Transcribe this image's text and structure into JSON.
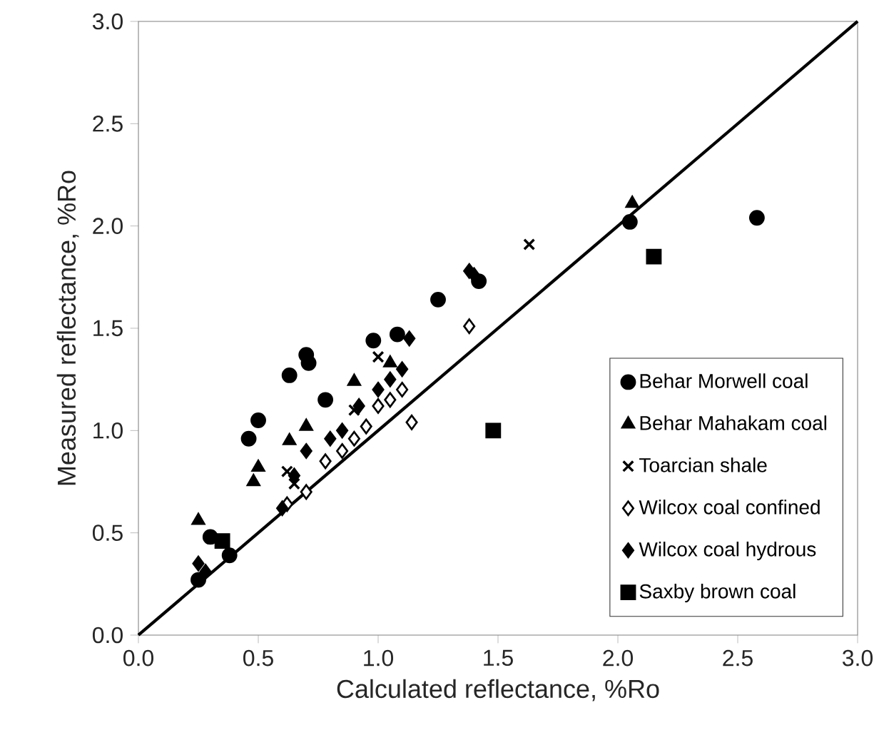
{
  "chart_data": {
    "type": "scatter",
    "xlabel": "Calculated reflectance, %Ro",
    "ylabel": "Measured reflectance, %Ro",
    "xlim": [
      0,
      3
    ],
    "ylim": [
      0,
      3
    ],
    "xticks": [
      {
        "value": 0,
        "label": "0.0"
      },
      {
        "value": 0.5,
        "label": "0.5"
      },
      {
        "value": 1,
        "label": "1.0"
      },
      {
        "value": 1.5,
        "label": "1.5"
      },
      {
        "value": 2,
        "label": "2.0"
      },
      {
        "value": 2.5,
        "label": "2.5"
      },
      {
        "value": 3,
        "label": "3.0"
      }
    ],
    "yticks": [
      {
        "value": 0,
        "label": "0.0"
      },
      {
        "value": 0.5,
        "label": "0.5"
      },
      {
        "value": 1,
        "label": "1.0"
      },
      {
        "value": 1.5,
        "label": "1.5"
      },
      {
        "value": 2,
        "label": "2.0"
      },
      {
        "value": 2.5,
        "label": "2.5"
      },
      {
        "value": 3,
        "label": "3.0"
      }
    ],
    "grid": false,
    "legend": "bottom right",
    "series": [
      {
        "name": "Behar Morwell coal",
        "color": "#000000",
        "marker": "circle",
        "x": [
          0.25,
          0.3,
          0.38,
          0.46,
          0.5,
          0.63,
          0.7,
          0.71,
          0.78,
          0.98,
          1.08,
          1.25,
          1.42,
          2.05,
          2.58
        ],
        "values": [
          0.27,
          0.48,
          0.39,
          0.96,
          1.05,
          1.27,
          1.37,
          1.33,
          1.15,
          1.44,
          1.47,
          1.64,
          1.73,
          2.02,
          2.04
        ]
      },
      {
        "name": "Behar Mahakam coal",
        "color": "#000000",
        "marker": "triangle",
        "x": [
          0.25,
          0.48,
          0.5,
          0.63,
          0.7,
          0.9,
          1.05,
          2.06
        ],
        "values": [
          0.56,
          0.75,
          0.82,
          0.95,
          1.02,
          1.24,
          1.33,
          2.11
        ]
      },
      {
        "name": "Toarcian shale",
        "color": "#000000",
        "marker": "cross",
        "x": [
          0.62,
          0.65,
          0.9,
          1.0,
          1.63
        ],
        "values": [
          0.8,
          0.74,
          1.1,
          1.36,
          1.91
        ]
      },
      {
        "name": "Wilcox coal confined",
        "color": "#ffffff",
        "marker": "diamond",
        "x": [
          0.62,
          0.7,
          0.78,
          0.85,
          0.9,
          0.95,
          1.0,
          1.05,
          1.1,
          1.14,
          1.38
        ],
        "values": [
          0.64,
          0.7,
          0.85,
          0.9,
          0.96,
          1.02,
          1.12,
          1.15,
          1.2,
          1.04,
          1.51
        ]
      },
      {
        "name": "Wilcox coal hydrous",
        "color": "#000000",
        "marker": "diamond",
        "x": [
          0.25,
          0.28,
          0.6,
          0.65,
          0.7,
          0.8,
          0.85,
          0.92,
          1.0,
          1.05,
          1.1,
          1.13,
          1.38,
          1.4
        ],
        "values": [
          0.35,
          0.31,
          0.62,
          0.78,
          0.9,
          0.96,
          1.0,
          1.12,
          1.2,
          1.25,
          1.3,
          1.45,
          1.78,
          1.76
        ]
      },
      {
        "name": "Saxby brown coal",
        "color": "#000000",
        "marker": "square",
        "x": [
          0.35,
          1.48,
          2.15
        ],
        "values": [
          0.46,
          1.0,
          1.85
        ]
      },
      {
        "type": "line",
        "color": "#000000",
        "marker": "none",
        "line_style": "solid",
        "x": [
          0,
          3
        ],
        "values": [
          0,
          3
        ]
      }
    ]
  }
}
